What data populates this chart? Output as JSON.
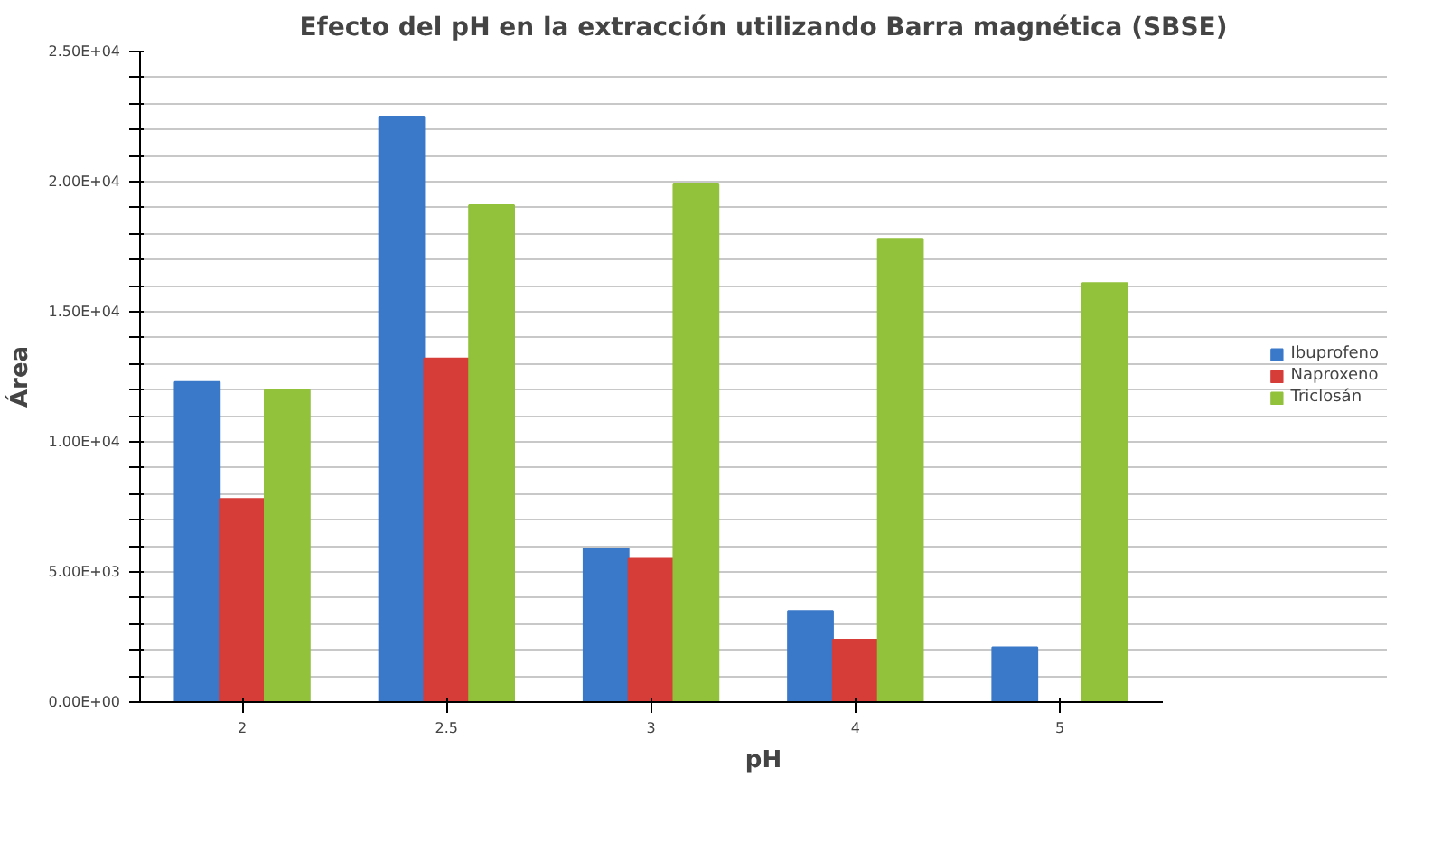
{
  "chart_data": {
    "type": "bar",
    "title": "Efecto del pH en la extracción utilizando Barra magnética (SBSE)",
    "xlabel": "pH",
    "ylabel": "Área",
    "categories": [
      "2",
      "2.5",
      "3",
      "4",
      "5"
    ],
    "series": [
      {
        "name": "Ibuprofeno",
        "color": "#3a78c9",
        "values": [
          12300,
          22500,
          5900,
          3500,
          2100
        ]
      },
      {
        "name": "Naproxeno",
        "color": "#d63c38",
        "values": [
          7800,
          13200,
          5500,
          2400,
          null
        ]
      },
      {
        "name": "Triclosán",
        "color": "#92c13c",
        "values": [
          12000,
          19100,
          19900,
          17800,
          16100
        ]
      }
    ],
    "ylim": [
      0,
      25000
    ],
    "yticks": [
      {
        "value": 0,
        "label": "0.00E+00"
      },
      {
        "value": 1000,
        "label": null
      },
      {
        "value": 2000,
        "label": null
      },
      {
        "value": 3000,
        "label": null
      },
      {
        "value": 4000,
        "label": null
      },
      {
        "value": 5000,
        "label": "5.00E+03"
      },
      {
        "value": 6000,
        "label": null
      },
      {
        "value": 7000,
        "label": null
      },
      {
        "value": 8000,
        "label": null
      },
      {
        "value": 9000,
        "label": null
      },
      {
        "value": 10000,
        "label": "1.00E+04"
      },
      {
        "value": 11000,
        "label": null
      },
      {
        "value": 12000,
        "label": null
      },
      {
        "value": 13000,
        "label": null
      },
      {
        "value": 14000,
        "label": null
      },
      {
        "value": 15000,
        "label": "1.50E+04"
      },
      {
        "value": 16000,
        "label": null
      },
      {
        "value": 17000,
        "label": null
      },
      {
        "value": 18000,
        "label": null
      },
      {
        "value": 19000,
        "label": null
      },
      {
        "value": 20000,
        "label": "2.00E+04"
      },
      {
        "value": 21000,
        "label": null
      },
      {
        "value": 22000,
        "label": null
      },
      {
        "value": 23000,
        "label": null
      },
      {
        "value": 24000,
        "label": null
      },
      {
        "value": 25000,
        "label": "2.50E+04"
      }
    ],
    "grid": "y",
    "legend": "right"
  }
}
